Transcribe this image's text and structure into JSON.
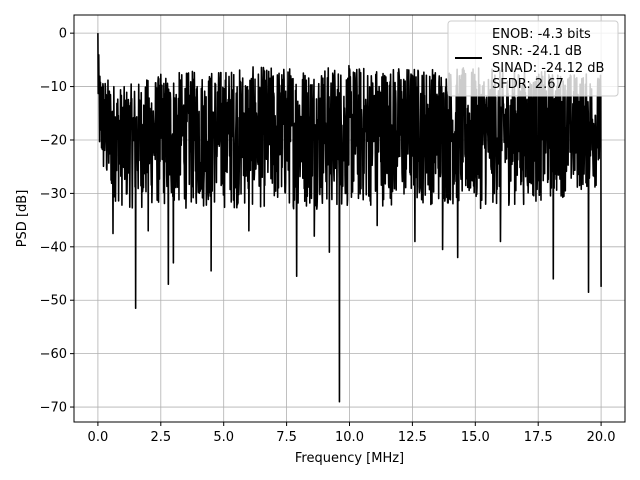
{
  "chart_data": {
    "type": "line",
    "title": "",
    "xlabel": "Frequency [MHz]",
    "ylabel": "PSD [dB]",
    "xlim": [
      -0.95,
      20.95
    ],
    "ylim": [
      -72.8,
      3.4
    ],
    "x_ticks": [
      0.0,
      2.5,
      5.0,
      7.5,
      10.0,
      12.5,
      15.0,
      17.5,
      20.0
    ],
    "x_tick_labels": [
      "0.0",
      "2.5",
      "5.0",
      "7.5",
      "10.0",
      "12.5",
      "15.0",
      "17.5",
      "20.0"
    ],
    "y_ticks": [
      0,
      -10,
      -20,
      -30,
      -40,
      -50,
      -60,
      -70
    ],
    "y_tick_labels": [
      "0",
      "−10",
      "−20",
      "−30",
      "−40",
      "−50",
      "−60",
      "−70"
    ],
    "grid": true,
    "legend_placement": "upper right",
    "series": [
      {
        "color": "#000000",
        "x_start": 0.0,
        "x_end": 20.0,
        "envelope_x": [
          0.0,
          0.05,
          0.3,
          1.0,
          2.5,
          5.0,
          7.5,
          10.0,
          12.5,
          15.0,
          17.5,
          20.0
        ],
        "envelope_top": [
          0.0,
          -6.0,
          -8.0,
          -10.0,
          -7.5,
          -6.5,
          -6.0,
          -6.0,
          -6.0,
          -6.5,
          -7.0,
          -7.5
        ],
        "envelope_bot": [
          -15.0,
          -24.0,
          -30.0,
          -33.0,
          -33.0,
          -33.0,
          -33.0,
          -33.0,
          -32.0,
          -33.0,
          -32.0,
          -29.0
        ],
        "dips": [
          {
            "x": 0.6,
            "y": -37.5
          },
          {
            "x": 1.5,
            "y": -51.5
          },
          {
            "x": 2.0,
            "y": -37.0
          },
          {
            "x": 2.8,
            "y": -47.0
          },
          {
            "x": 3.0,
            "y": -43.0
          },
          {
            "x": 4.5,
            "y": -44.5
          },
          {
            "x": 6.0,
            "y": -37.0
          },
          {
            "x": 7.9,
            "y": -45.5
          },
          {
            "x": 8.6,
            "y": -38.0
          },
          {
            "x": 9.2,
            "y": -41.0
          },
          {
            "x": 9.6,
            "y": -69.0
          },
          {
            "x": 11.1,
            "y": -36.0
          },
          {
            "x": 12.6,
            "y": -39.0
          },
          {
            "x": 13.7,
            "y": -40.5
          },
          {
            "x": 14.3,
            "y": -42.0
          },
          {
            "x": 16.0,
            "y": -39.0
          },
          {
            "x": 18.1,
            "y": -46.0
          },
          {
            "x": 19.5,
            "y": -48.5
          },
          {
            "x": 20.0,
            "y": -47.5
          }
        ]
      }
    ],
    "legend_lines": [
      "ENOB: -4.3 bits",
      "SNR: -24.1 dB",
      "SINAD: -24.12 dB",
      "SFDR: 2.67"
    ]
  }
}
